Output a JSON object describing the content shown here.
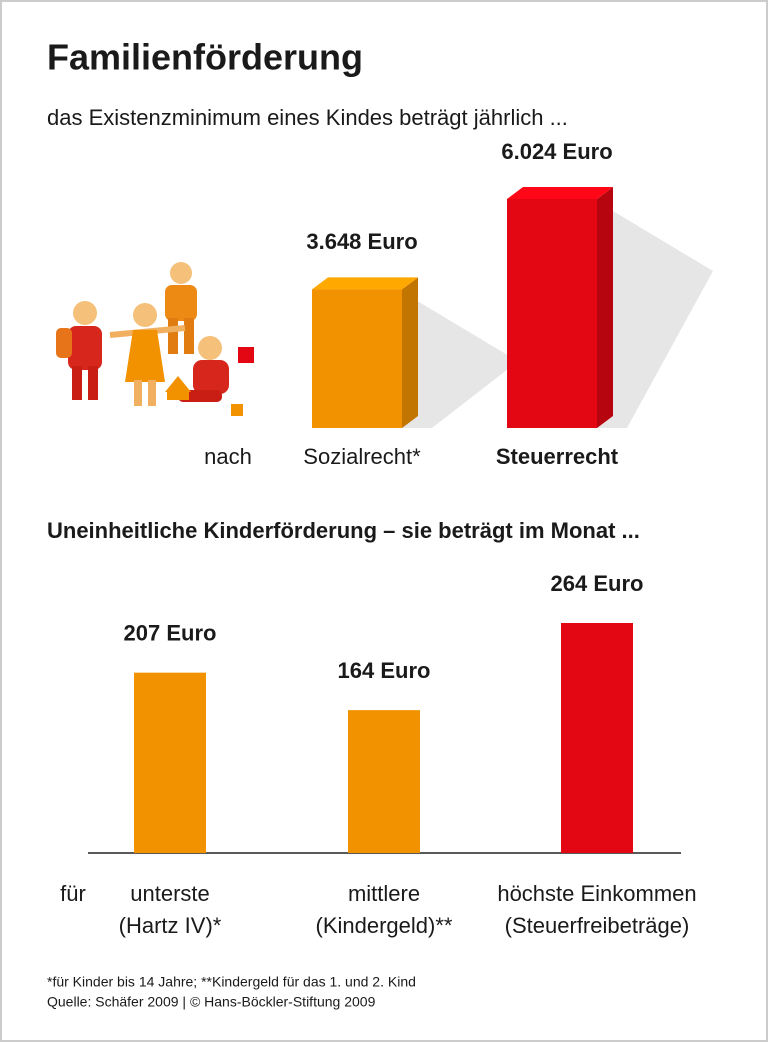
{
  "title": "Familienförderung",
  "footnote": "*für Kinder bis 14 Jahre; **Kindergeld für das 1. und 2. Kind",
  "source": "Quelle: Schäfer 2009 | © Hans-Böckler-Stiftung 2009",
  "chart_data": [
    {
      "type": "bar3d",
      "title": "das Existenzminimum eines Kindes beträgt jährlich ...",
      "category_prefix": "nach",
      "categories": [
        "Sozialrecht*",
        "Steuerrecht"
      ],
      "values": [
        3648,
        6024
      ],
      "value_labels": [
        "3.648 Euro",
        "6.024 Euro"
      ],
      "colors": [
        "#f39200",
        "#e30613"
      ]
    },
    {
      "type": "bar",
      "title": "Uneinheitliche Kinderförderung – sie beträgt im Monat ...",
      "category_prefix": "für",
      "categories": [
        [
          "unterste",
          "(Hartz IV)*"
        ],
        [
          "mittlere",
          "(Kindergeld)**"
        ],
        [
          "höchste Einkommen",
          "(Steuerfreibeträge)"
        ]
      ],
      "values": [
        207,
        164,
        264
      ],
      "value_labels": [
        "207 Euro",
        "164 Euro",
        "264 Euro"
      ],
      "colors": [
        "#f39200",
        "#f39200",
        "#e30613"
      ]
    }
  ]
}
